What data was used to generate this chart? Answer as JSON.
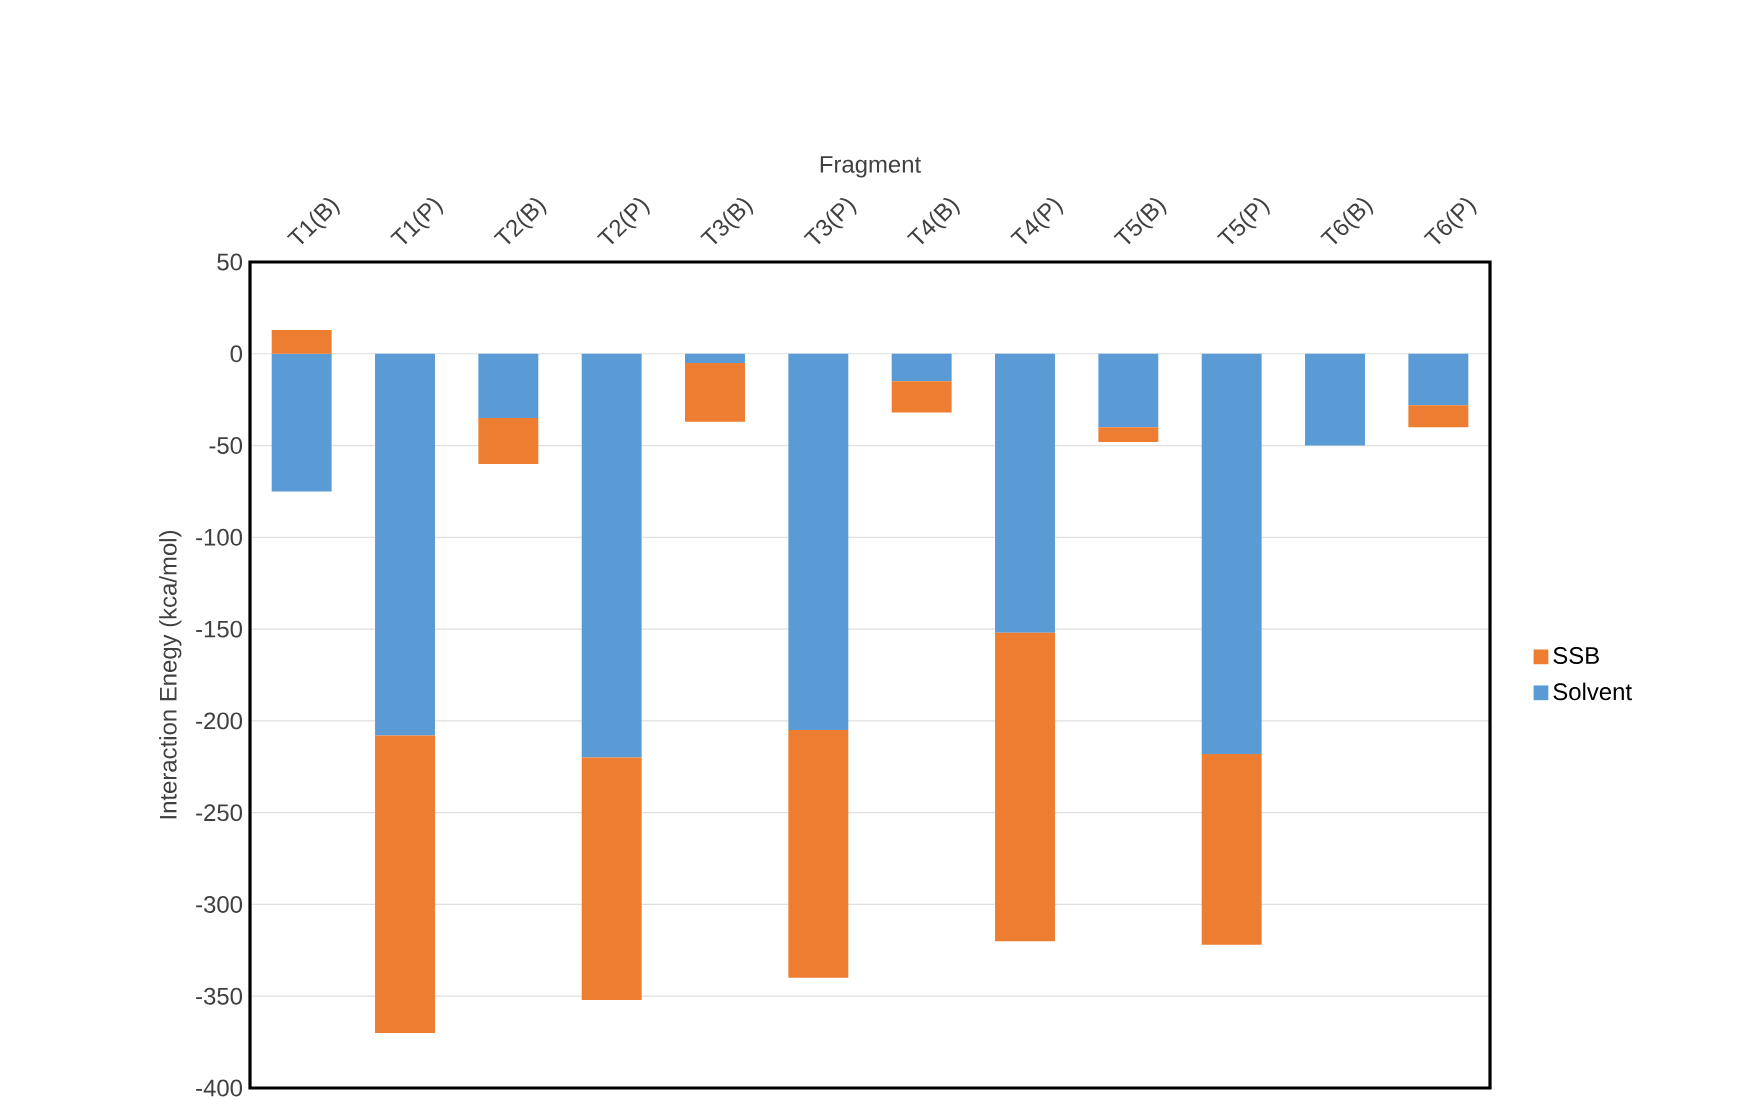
{
  "chart_data": {
    "type": "bar",
    "stacked": true,
    "xlabel": "Fragment",
    "ylabel": "Interaction Enegy (kca/mol)",
    "categories": [
      "T1(B)",
      "T1(P)",
      "T2(B)",
      "T2(P)",
      "T3(B)",
      "T3(P)",
      "T4(B)",
      "T4(P)",
      "T5(B)",
      "T5(P)",
      "T6(B)",
      "T6(P)"
    ],
    "series": [
      {
        "name": "Solvent",
        "color": "#5b9bd5",
        "values": [
          -75,
          -208,
          -35,
          -220,
          -5,
          -205,
          -15,
          -152,
          -40,
          -218,
          -50,
          -28
        ]
      },
      {
        "name": "SSB",
        "color": "#ed7d31",
        "values": [
          13,
          -162,
          -25,
          -132,
          -32,
          -135,
          -17,
          -168,
          -8,
          -104,
          0,
          -12
        ]
      }
    ],
    "ylim": [
      -400,
      50
    ],
    "yticks": [
      -400,
      -350,
      -300,
      -250,
      -200,
      -150,
      -100,
      -50,
      0,
      50
    ],
    "grid": "y",
    "legend": "right"
  }
}
